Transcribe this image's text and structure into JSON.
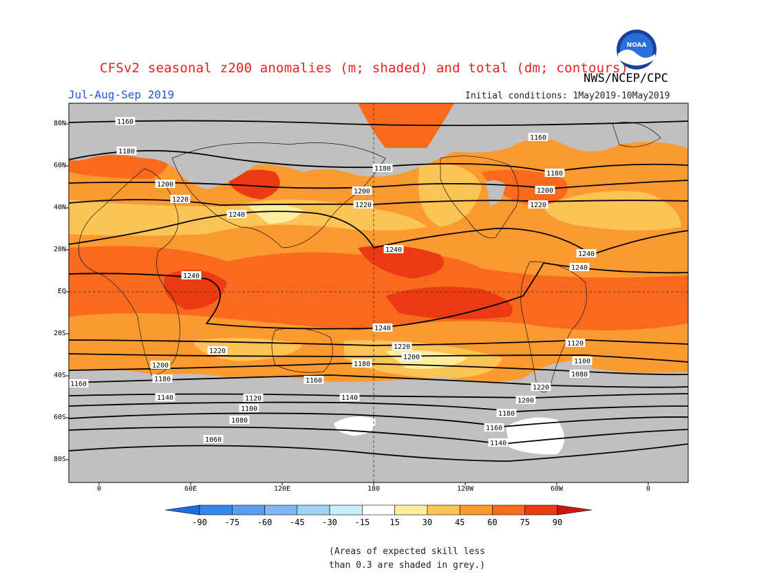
{
  "title": "CFSv2 seasonal z200 anomalies (m; shaded) and total (dm; contours)",
  "agency": "NWS/NCEP/CPC",
  "season": "Jul-Aug-Sep 2019",
  "initial_conditions": "Initial conditions: 1May2019-10May2019",
  "logo_text": "NOAA",
  "latitude_labels": [
    "80N",
    "60N",
    "40N",
    "20N",
    "EQ",
    "20S",
    "40S",
    "60S",
    "80S"
  ],
  "longitude_labels": [
    "0",
    "60E",
    "120E",
    "180",
    "120W",
    "60W",
    "0"
  ],
  "colorbar": {
    "ticks": [
      "-90",
      "-75",
      "-60",
      "-45",
      "-30",
      "-15",
      "15",
      "30",
      "45",
      "60",
      "75",
      "90"
    ],
    "colors": [
      "#1e6ee0",
      "#3388e8",
      "#5aa0ee",
      "#7fb8f0",
      "#9fd4f2",
      "#c4eef8",
      "#ffffff",
      "#ffeea0",
      "#fcc454",
      "#fb9a30",
      "#fa6a1e",
      "#ec3a12",
      "#c81810"
    ]
  },
  "note": "(Areas of expected skill less\nthan 0.3 are shaded in grey.)",
  "contour_labels": [
    "1160",
    "1180",
    "1200",
    "1220",
    "1240",
    "1240",
    "1240",
    "1240",
    "1180",
    "1200",
    "1220",
    "1160",
    "1180",
    "1200",
    "1220",
    "1240",
    "1240",
    "1220",
    "1200",
    "1180",
    "1160",
    "1140",
    "1120",
    "1100",
    "1080",
    "1060",
    "1220",
    "1200",
    "1180",
    "1160",
    "1140",
    "1120",
    "1100",
    "1080",
    "1220",
    "1200",
    "1180",
    "1160",
    "1140"
  ]
}
